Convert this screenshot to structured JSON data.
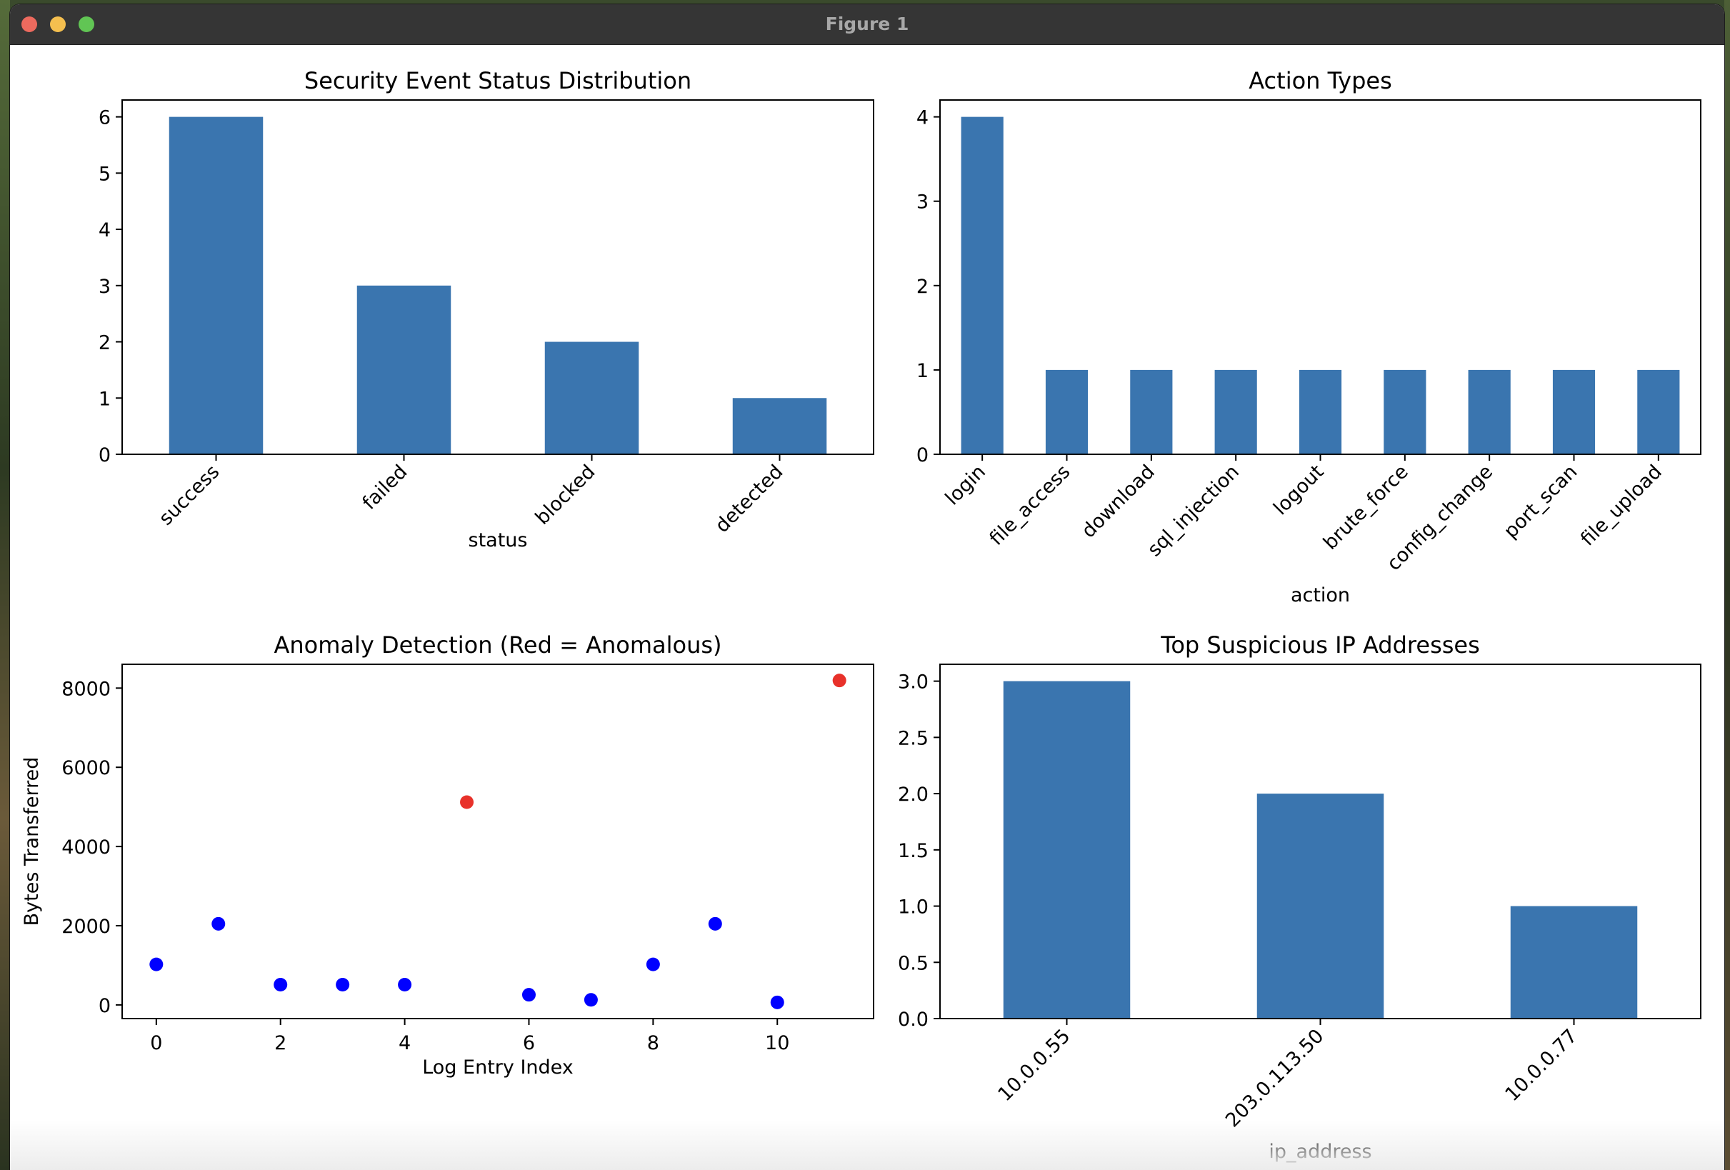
{
  "window": {
    "title": "Figure 1"
  },
  "chart_data": [
    {
      "type": "bar",
      "title": "Security Event Status Distribution",
      "xlabel": "status",
      "ylabel": "",
      "categories": [
        "success",
        "failed",
        "blocked",
        "detected"
      ],
      "values": [
        6,
        3,
        2,
        1
      ],
      "ylim": [
        0,
        6.3
      ],
      "yticks": [
        0,
        1,
        2,
        3,
        4,
        5,
        6
      ],
      "color": "#3a75af",
      "grid": false
    },
    {
      "type": "bar",
      "title": "Action Types",
      "xlabel": "action",
      "ylabel": "",
      "categories": [
        "login",
        "file_access",
        "download",
        "sql_injection",
        "logout",
        "brute_force",
        "config_change",
        "port_scan",
        "file_upload"
      ],
      "values": [
        4,
        1,
        1,
        1,
        1,
        1,
        1,
        1,
        1
      ],
      "ylim": [
        0,
        4.2
      ],
      "yticks": [
        0,
        1,
        2,
        3,
        4
      ],
      "color": "#3a75af",
      "grid": false
    },
    {
      "type": "scatter",
      "title": "Anomaly Detection (Red = Anomalous)",
      "xlabel": "Log Entry Index",
      "ylabel": "Bytes Transferred",
      "x": [
        0,
        1,
        2,
        3,
        4,
        5,
        6,
        7,
        8,
        9,
        10,
        11
      ],
      "y": [
        1024,
        2048,
        512,
        512,
        512,
        5120,
        256,
        128,
        1024,
        2048,
        64,
        8192
      ],
      "anomalous": [
        false,
        false,
        false,
        false,
        false,
        true,
        false,
        false,
        false,
        false,
        false,
        true
      ],
      "normal_color": "#0000ff",
      "anomaly_color": "#e8312a",
      "xlim": [
        -0.55,
        11.55
      ],
      "ylim": [
        -345,
        8601
      ],
      "xticks": [
        0,
        2,
        4,
        6,
        8,
        10
      ],
      "yticks": [
        0,
        2000,
        4000,
        6000,
        8000
      ],
      "grid": false
    },
    {
      "type": "bar",
      "title": "Top Suspicious IP Addresses",
      "xlabel": "ip_address",
      "ylabel": "",
      "categories": [
        "10.0.0.55",
        "203.0.113.50",
        "10.0.0.77"
      ],
      "values": [
        3,
        2,
        1
      ],
      "ylim": [
        0,
        3.15
      ],
      "yticks": [
        "0.0",
        "0.5",
        "1.0",
        "1.5",
        "2.0",
        "2.5",
        "3.0"
      ],
      "color": "#3a75af",
      "grid": false
    }
  ]
}
